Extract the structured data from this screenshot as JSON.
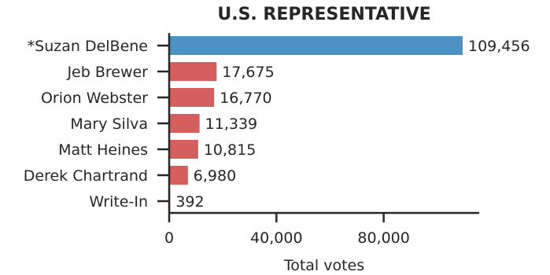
{
  "chart_data": {
    "type": "bar",
    "orientation": "horizontal",
    "title": "U.S. REPRESENTATIVE",
    "xlabel": "Total votes",
    "ylabel": "",
    "xlim": [
      0,
      115000
    ],
    "xticks": [
      0,
      40000,
      80000
    ],
    "xtick_labels": [
      "0",
      "40,000",
      "80,000"
    ],
    "grid": false,
    "legend": "none",
    "categories": [
      "*Suzan DelBene",
      "Jeb Brewer",
      "Orion Webster",
      "Mary Silva",
      "Matt Heines",
      "Derek Chartrand",
      "Write-In"
    ],
    "values": [
      109456,
      17675,
      16770,
      11339,
      10815,
      6980,
      392
    ],
    "value_labels": [
      "109,456",
      "17,675",
      "16,770",
      "11,339",
      "10,815",
      "6,980",
      "392"
    ],
    "colors": [
      "#4c92c3",
      "#d55f5f",
      "#d55f5f",
      "#d55f5f",
      "#d55f5f",
      "#d55f5f",
      "#d55f5f"
    ]
  }
}
